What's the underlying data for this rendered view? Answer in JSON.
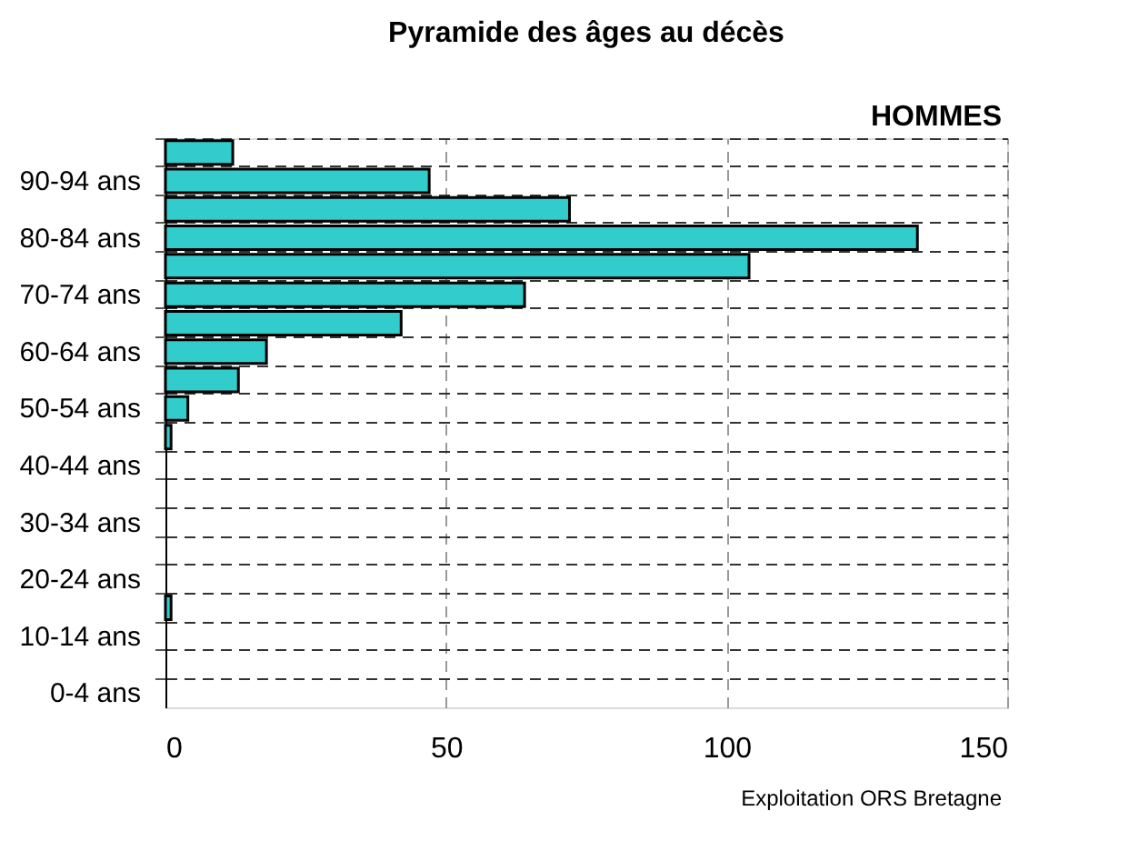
{
  "chart_data": {
    "type": "bar",
    "orientation": "horizontal",
    "title": "Pyramide des âges au décès",
    "categories": [
      null,
      "90-94 ans",
      null,
      "80-84 ans",
      null,
      "70-74 ans",
      null,
      "60-64 ans",
      null,
      "50-54 ans",
      null,
      "40-44 ans",
      null,
      "30-34 ans",
      null,
      "20-24 ans",
      null,
      "10-14 ans",
      null,
      "0-4 ans"
    ],
    "series": [
      {
        "color": "#33cccc",
        "values": [
          12,
          47,
          72,
          134,
          104,
          64,
          42,
          18,
          13,
          4,
          1,
          0,
          0,
          0,
          0,
          0,
          1,
          0,
          0,
          0
        ]
      }
    ],
    "xlim": [
      0,
      150
    ],
    "xticks": [
      0,
      50,
      100,
      150
    ],
    "grid": true,
    "annotations": [
      "HOMMES",
      "Exploitation ORS Bretagne"
    ]
  }
}
